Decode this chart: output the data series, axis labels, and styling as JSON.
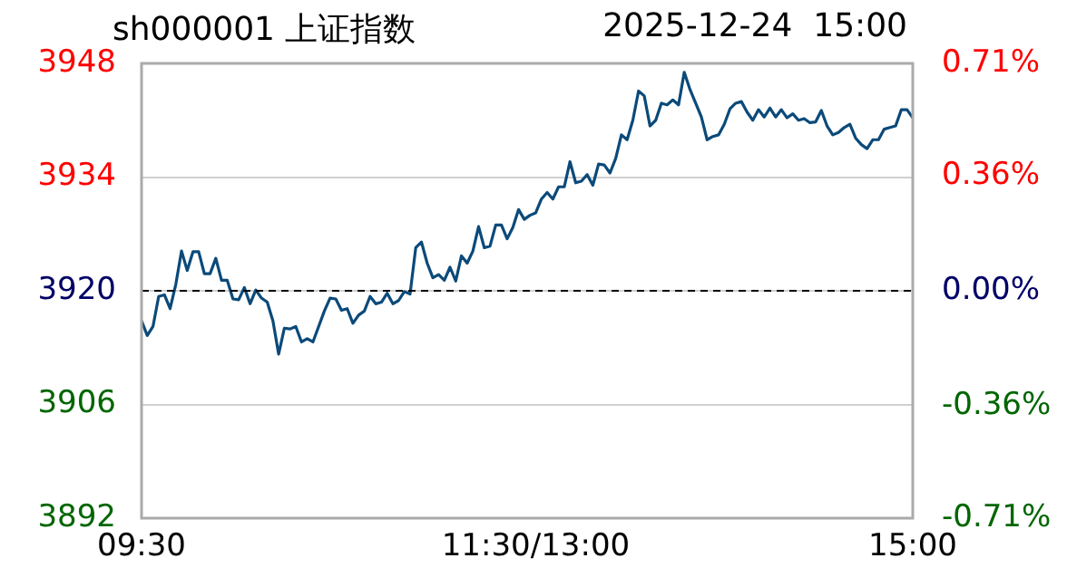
{
  "chart_data": {
    "type": "line",
    "title": "sh000001 上证指数",
    "subtitle": "2025-12-24  15:00",
    "categories": [
      "09:30",
      null,
      null,
      null,
      null,
      null,
      null,
      null,
      null,
      null,
      null,
      null,
      null,
      null,
      null,
      null,
      null,
      null,
      null,
      null,
      null,
      null,
      null,
      null,
      null,
      null,
      null,
      null,
      null,
      null,
      null,
      null,
      null,
      null,
      null,
      null,
      null,
      null,
      null,
      null,
      null,
      null,
      null,
      null,
      null,
      null,
      null,
      null,
      null,
      null,
      null,
      null,
      null,
      null,
      null,
      null,
      null,
      null,
      null,
      null,
      null,
      null,
      null,
      null,
      null,
      null,
      null,
      null,
      null,
      "11:30/13:00",
      null,
      null,
      null,
      null,
      null,
      null,
      null,
      null,
      null,
      null,
      null,
      null,
      null,
      null,
      null,
      null,
      null,
      null,
      null,
      null,
      null,
      null,
      null,
      null,
      null,
      null,
      null,
      null,
      null,
      null,
      null,
      null,
      null,
      null,
      null,
      null,
      null,
      null,
      null,
      null,
      null,
      null,
      null,
      null,
      null,
      null,
      null,
      null,
      null,
      null,
      null,
      null,
      null,
      null,
      null,
      null,
      null,
      null,
      null,
      null,
      null,
      null,
      null,
      null,
      null,
      "15:00"
    ],
    "series": [
      {
        "color": "#0b4a7a",
        "values": [
          3916.3,
          3914.5,
          3915.6,
          3919.3,
          3919.5,
          3917.8,
          3920.8,
          3924.9,
          3922.5,
          3924.8,
          3924.8,
          3922.1,
          3922.1,
          3924.0,
          3921.3,
          3921.3,
          3919.0,
          3918.9,
          3920.4,
          3918.4,
          3920.1,
          3919.1,
          3918.6,
          3916.3,
          3912.2,
          3915.4,
          3915.3,
          3915.6,
          3913.7,
          3914.1,
          3913.7,
          3915.6,
          3917.5,
          3919.1,
          3919.0,
          3917.6,
          3917.8,
          3916.0,
          3917.0,
          3917.5,
          3919.3,
          3918.4,
          3918.6,
          3919.7,
          3918.4,
          3918.8,
          3919.9,
          3919.6,
          3925.3,
          3926.0,
          3923.4,
          3921.6,
          3922.0,
          3921.3,
          3922.9,
          3921.2,
          3924.3,
          3923.4,
          3924.9,
          3927.9,
          3925.3,
          3925.5,
          3928.1,
          3928.1,
          3926.4,
          3927.8,
          3930.0,
          3928.8,
          3929.3,
          3929.6,
          3931.3,
          3932.1,
          3931.3,
          3932.8,
          3932.8,
          3935.9,
          3933.3,
          3933.5,
          3934.3,
          3933.0,
          3935.6,
          3935.5,
          3934.5,
          3936.3,
          3939.2,
          3938.6,
          3941.0,
          3944.6,
          3944.0,
          3940.3,
          3941.0,
          3943.1,
          3942.9,
          3943.5,
          3942.9,
          3946.9,
          3944.8,
          3943.1,
          3941.4,
          3938.6,
          3939.0,
          3939.2,
          3940.5,
          3942.4,
          3943.1,
          3943.3,
          3942.0,
          3941.0,
          3942.3,
          3941.4,
          3942.5,
          3941.4,
          3942.3,
          3941.3,
          3941.8,
          3941.0,
          3941.2,
          3940.7,
          3940.8,
          3942.2,
          3940.3,
          3939.2,
          3939.5,
          3940.1,
          3940.5,
          3938.8,
          3938.0,
          3937.5,
          3938.6,
          3938.6,
          3939.9,
          3940.1,
          3940.3,
          3942.3,
          3942.3,
          3941.3
        ]
      }
    ],
    "ylim": [
      3892,
      3948
    ],
    "yticks": [
      3892,
      3906,
      3920,
      3934,
      3948
    ],
    "y2lim": [
      -0.71,
      0.71
    ],
    "y2ticks": [
      {
        "value": -0.71,
        "label": "-0.71%"
      },
      {
        "value": -0.36,
        "label": "-0.36%"
      },
      {
        "value": 0,
        "label": "0.00%"
      },
      {
        "value": 0.36,
        "label": "0.36%"
      },
      {
        "value": 0.71,
        "label": "0.71%"
      }
    ],
    "ref_lines": [
      {
        "axis": "y",
        "value": 3920,
        "color": "#000000",
        "line_style": "dashed"
      }
    ],
    "grid": "y",
    "legend": false,
    "marker": "none",
    "line_style": "solid"
  }
}
